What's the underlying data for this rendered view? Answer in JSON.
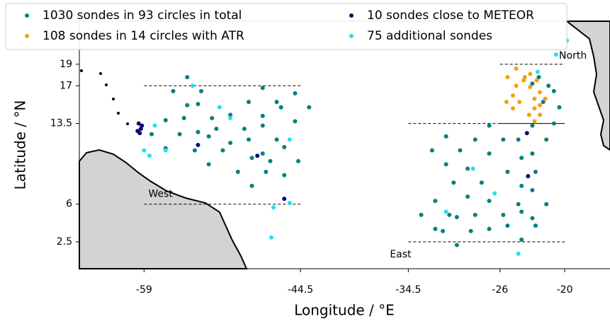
{
  "chart_data": {
    "type": "scatter",
    "xlabel": "Longitude / °E",
    "ylabel": "Latitude / °N",
    "xlim": [
      -65,
      -15.8
    ],
    "ylim": [
      0,
      23
    ],
    "xticks": [
      -59,
      -44.5,
      -34.5,
      -26,
      -20
    ],
    "yticks": [
      2.5,
      6,
      13.5,
      17,
      19
    ],
    "legend": "upper left",
    "regions": [
      {
        "name": "West",
        "xlim": [
          -59,
          -44.5
        ],
        "ylim": [
          6,
          17
        ]
      },
      {
        "name": "East",
        "xlim": [
          -34.5,
          -20
        ],
        "ylim": [
          2.5,
          13.5
        ]
      },
      {
        "name": "North",
        "xlim": [
          -26,
          -20
        ],
        "ylim": [
          13.5,
          19
        ]
      }
    ],
    "series": [
      {
        "name": "1030 sondes in 93 circles in total",
        "color": "#008080",
        "x": [
          -55.7,
          -57,
          -58.3,
          -57,
          -52.7,
          -54,
          -55.3,
          -54,
          -49.7,
          -51,
          -52.3,
          -51,
          -46.7,
          -48,
          -49.3,
          -48,
          -44.7,
          -46,
          -47.3,
          -46,
          -47.7,
          -49,
          -50.3,
          -49,
          -51.7,
          -53,
          -54.3,
          -53,
          -43.7,
          -45,
          -46.3,
          -45,
          -46.7,
          -48,
          -49.3,
          -48,
          -53.7,
          -55,
          -56.3,
          -55,
          -30.7,
          -32,
          -33.3,
          -32,
          -27.7,
          -29,
          -30.3,
          -29,
          -29.7,
          -31,
          -32.3,
          -31,
          -25.7,
          -27,
          -28.3,
          -27,
          -22.7,
          -24,
          -25.3,
          -24,
          -25.7,
          -27,
          -28.3,
          -27,
          -21.7,
          -23,
          -24.3,
          -23,
          -21.7,
          -23,
          -24.3,
          -23,
          -28.7,
          -30,
          -31.3,
          -30,
          -22.7,
          -24,
          -25.3,
          -24,
          -21,
          -21.5,
          -22,
          -20.5,
          -21,
          -23,
          -22.4
        ],
        "y": [
          12.5,
          13.8,
          12.5,
          11.2,
          14,
          15.3,
          14,
          12.7,
          13,
          14.3,
          13,
          11.7,
          12,
          13.3,
          12,
          10.7,
          10,
          11.3,
          10,
          8.7,
          9,
          10.3,
          9,
          7.7,
          11,
          12.3,
          11,
          9.7,
          15,
          16.3,
          15,
          13.7,
          15.5,
          16.8,
          15.5,
          14.2,
          16.5,
          17.8,
          16.5,
          15.2,
          5,
          6.3,
          5,
          3.7,
          8,
          9.3,
          8,
          6.7,
          11,
          12.3,
          11,
          9.7,
          12,
          13.3,
          12,
          10.7,
          9,
          10.3,
          9,
          7.7,
          5,
          6.3,
          5,
          3.7,
          6,
          7.3,
          6,
          4.7,
          12,
          13.3,
          12,
          10.7,
          3.5,
          4.8,
          3.5,
          2.2,
          4,
          5.3,
          4,
          2.7,
          16.5,
          17,
          15.5,
          15,
          13.5,
          17.2,
          17.8
        ]
      },
      {
        "name": "108 sondes in 14 circles with ATR",
        "color": "#f5a00a",
        "x": [
          -23.7,
          -24.5,
          -25.3,
          -24.5,
          -22.6,
          -23.2,
          -23.8,
          -23.2,
          -24.2,
          -24.8,
          -25.4,
          -24.8,
          -21.8,
          -22.3,
          -22.8,
          -22.3,
          -22.3,
          -22.8,
          -23.3,
          -22.8
        ],
        "y": [
          17.8,
          18.6,
          17.8,
          17,
          17.5,
          18.1,
          17.5,
          16.9,
          15.5,
          16.1,
          15.5,
          14.9,
          15.8,
          16.4,
          15.8,
          15.2,
          14.3,
          14.9,
          14.3,
          13.7
        ]
      },
      {
        "name": "10 sondes close to METEOR",
        "color": "#0a0a78",
        "x": [
          -59.5,
          -59.3,
          -59.6,
          -59.2,
          -54,
          -48.5,
          -46,
          -23.5,
          -23.4,
          -59.4
        ],
        "y": [
          13.5,
          13,
          12.8,
          13.3,
          11.5,
          10.5,
          6.5,
          12.6,
          8.6,
          12.6
        ]
      },
      {
        "name": "75 additional sondes",
        "color": "#22e0f0",
        "x": [
          -19.8,
          -20.8,
          -22.5,
          -57,
          -59,
          -58.5,
          -54.5,
          -52,
          -47,
          -45.5,
          -47.2,
          -24.3,
          -31,
          -26.5,
          -28.5,
          -58,
          -51,
          -45.5
        ],
        "y": [
          21.2,
          19.9,
          18.3,
          11,
          11,
          10.5,
          17,
          15,
          5.7,
          6.1,
          2.9,
          1.4,
          5.3,
          7,
          9.3,
          13.3,
          14,
          12
        ]
      }
    ]
  }
}
